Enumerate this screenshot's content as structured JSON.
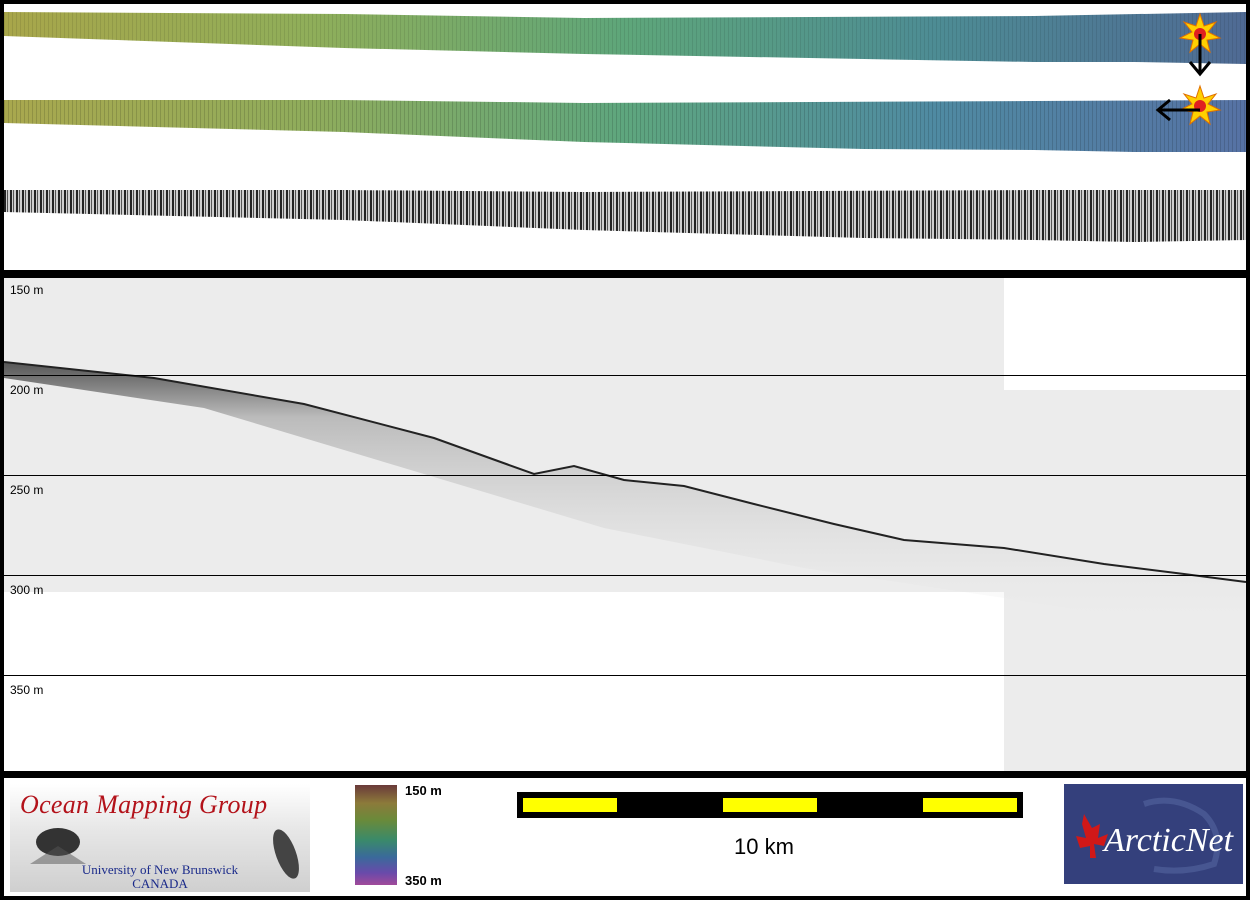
{
  "profile": {
    "depth_labels": [
      "150 m",
      "200 m",
      "250 m",
      "300 m",
      "350 m"
    ]
  },
  "legend": {
    "colorbar_top": "150 m",
    "colorbar_bottom": "350 m",
    "scale_label": "10 km"
  },
  "logos": {
    "omg_title": "Ocean Mapping Group",
    "omg_line1": "University of New Brunswick",
    "omg_line2": "CANADA",
    "arcticnet": "ArcticNet"
  },
  "colors": {
    "omg_red": "#b3121a",
    "omg_blue": "#1a2a8a",
    "arcticnet_bg": "#34407c",
    "scalebar_fill": "#ffff00"
  }
}
